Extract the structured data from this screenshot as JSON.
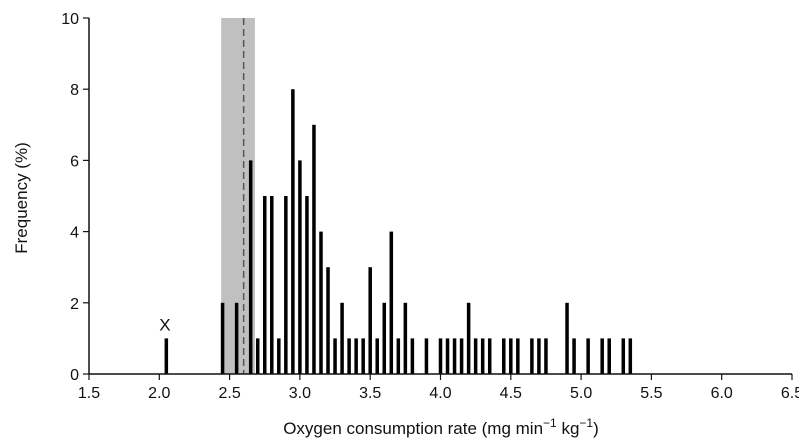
{
  "chart_data": {
    "type": "bar",
    "xlabel": "Oxygen consumption rate (mg min",
    "xlabel_sup1": "−1",
    "xlabel_mid": " kg",
    "xlabel_sup2": "−1",
    "xlabel_end": ")",
    "ylabel": "Frequency (%)",
    "xlim": [
      1.5,
      6.5
    ],
    "ylim": [
      0,
      10
    ],
    "x_ticks": [
      "1.5",
      "2.0",
      "2.5",
      "3.0",
      "3.5",
      "4.0",
      "4.5",
      "5.0",
      "5.5",
      "6.0",
      "6.5"
    ],
    "y_ticks": [
      "0",
      "2",
      "4",
      "6",
      "8",
      "10"
    ],
    "bar_width": 0.025,
    "x": [
      2.05,
      2.45,
      2.55,
      2.65,
      2.7,
      2.75,
      2.8,
      2.85,
      2.9,
      2.95,
      3.0,
      3.05,
      3.1,
      3.15,
      3.2,
      3.25,
      3.3,
      3.35,
      3.4,
      3.45,
      3.5,
      3.55,
      3.6,
      3.65,
      3.7,
      3.75,
      3.8,
      3.9,
      4.0,
      4.05,
      4.1,
      4.15,
      4.2,
      4.25,
      4.3,
      4.35,
      4.45,
      4.5,
      4.55,
      4.65,
      4.7,
      4.75,
      4.9,
      4.95,
      5.05,
      5.15,
      5.2,
      5.3,
      5.35
    ],
    "values": [
      1,
      2,
      2,
      6,
      1,
      5,
      5,
      1,
      5,
      8,
      6,
      5,
      7,
      4,
      3,
      1,
      2,
      1,
      1,
      1,
      3,
      1,
      2,
      4,
      1,
      2,
      1,
      1,
      1,
      1,
      1,
      1,
      2,
      1,
      1,
      1,
      1,
      1,
      1,
      1,
      1,
      1,
      2,
      1,
      1,
      1,
      1,
      1,
      1
    ],
    "shaded_range": [
      2.44,
      2.68
    ],
    "dashed_line_x": 2.6,
    "annotations": [
      {
        "text": "X",
        "x": 2.04,
        "y": 1.05
      }
    ],
    "colors": {
      "bars": "#000000",
      "shade": "#c0c0c0",
      "dashed_line": "#555555"
    },
    "grid": false
  }
}
